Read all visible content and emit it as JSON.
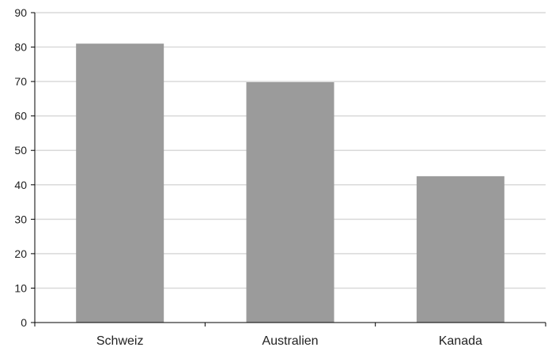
{
  "chart_data": {
    "type": "bar",
    "categories": [
      "Schweiz",
      "Australien",
      "Kanada"
    ],
    "values": [
      81,
      69.8,
      42.5
    ],
    "ylim": [
      0,
      90
    ],
    "yticks": [
      0,
      10,
      20,
      30,
      40,
      50,
      60,
      70,
      80,
      90
    ],
    "grid": "horizontal",
    "bar_color": "#9b9b9b",
    "grid_color": "#d9d9d9",
    "axis_color": "#000000"
  }
}
